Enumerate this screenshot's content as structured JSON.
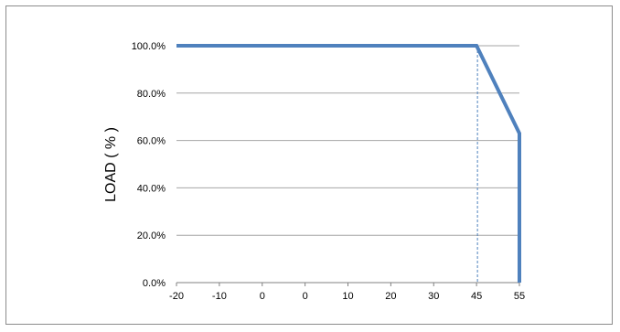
{
  "chart_data": {
    "type": "line",
    "title": "",
    "xlabel": "",
    "ylabel": "LOAD ( % )",
    "x_tick_labels": [
      "-20",
      "-10",
      "0",
      "0",
      "10",
      "20",
      "30",
      "45",
      "55"
    ],
    "y_tick_labels": [
      "0.0%",
      "20.0%",
      "40.0%",
      "60.0%",
      "80.0%",
      "100.0%"
    ],
    "ylim": [
      0,
      100
    ],
    "grid": "horizontal",
    "reference_line": {
      "x": 45,
      "style": "dashed"
    },
    "series": [
      {
        "points": [
          {
            "x": -20,
            "y": 100
          },
          {
            "x": 45,
            "y": 100
          },
          {
            "x": 55,
            "y": 63
          },
          {
            "x": 55,
            "y": 0
          }
        ],
        "color": "#4f81bd"
      }
    ],
    "colors": {
      "grid": "#a6a6a6",
      "axis": "#808080",
      "reference": "#4f81bd"
    }
  }
}
